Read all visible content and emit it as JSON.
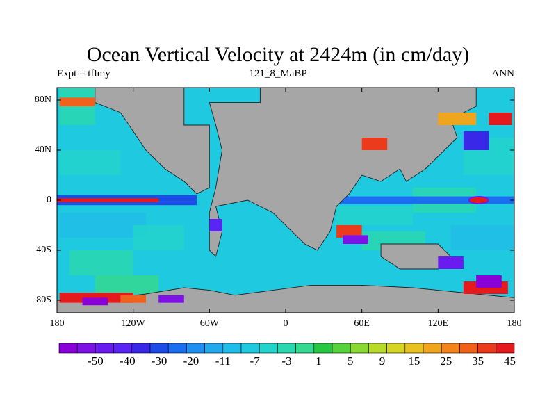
{
  "chart_data": {
    "type": "heatmap",
    "title": "Ocean Vertical Velocity at 2424m (in cm/day)",
    "left_string": "Expt = tflmy",
    "center_string": "121_8_MaBP",
    "right_string": "ANN",
    "y_ticks": [
      "80N",
      "40N",
      "0",
      "40S",
      "80S"
    ],
    "y_values": [
      80,
      40,
      0,
      -40,
      -80
    ],
    "x_ticks": [
      "180",
      "120W",
      "60W",
      "0",
      "60E",
      "120E",
      "180"
    ],
    "x_values": [
      -180,
      -120,
      -60,
      0,
      60,
      120,
      180
    ],
    "xlim": [
      -180,
      180
    ],
    "ylim": [
      -90,
      90
    ],
    "colorbar": {
      "labels": [
        "-50",
        "-40",
        "-30",
        "-20",
        "-11",
        "-7",
        "-3",
        "1",
        "5",
        "9",
        "15",
        "25",
        "35",
        "45"
      ],
      "colors": [
        "#8a00d9",
        "#7d12e6",
        "#6a1bf0",
        "#5a24f2",
        "#3a28e8",
        "#1d4ce6",
        "#1c6ef0",
        "#1f8fef",
        "#22a8ec",
        "#20bde8",
        "#1fc9df",
        "#22d4cb",
        "#2ad8b0",
        "#34d88f",
        "#27c744",
        "#57d23a",
        "#8ad834",
        "#b8db2b",
        "#d7d524",
        "#e8c220",
        "#efa51d",
        "#f2841b",
        "#f1611b",
        "#ec3a1c",
        "#e41a1c"
      ]
    },
    "land_color": "#a6a6a6"
  }
}
